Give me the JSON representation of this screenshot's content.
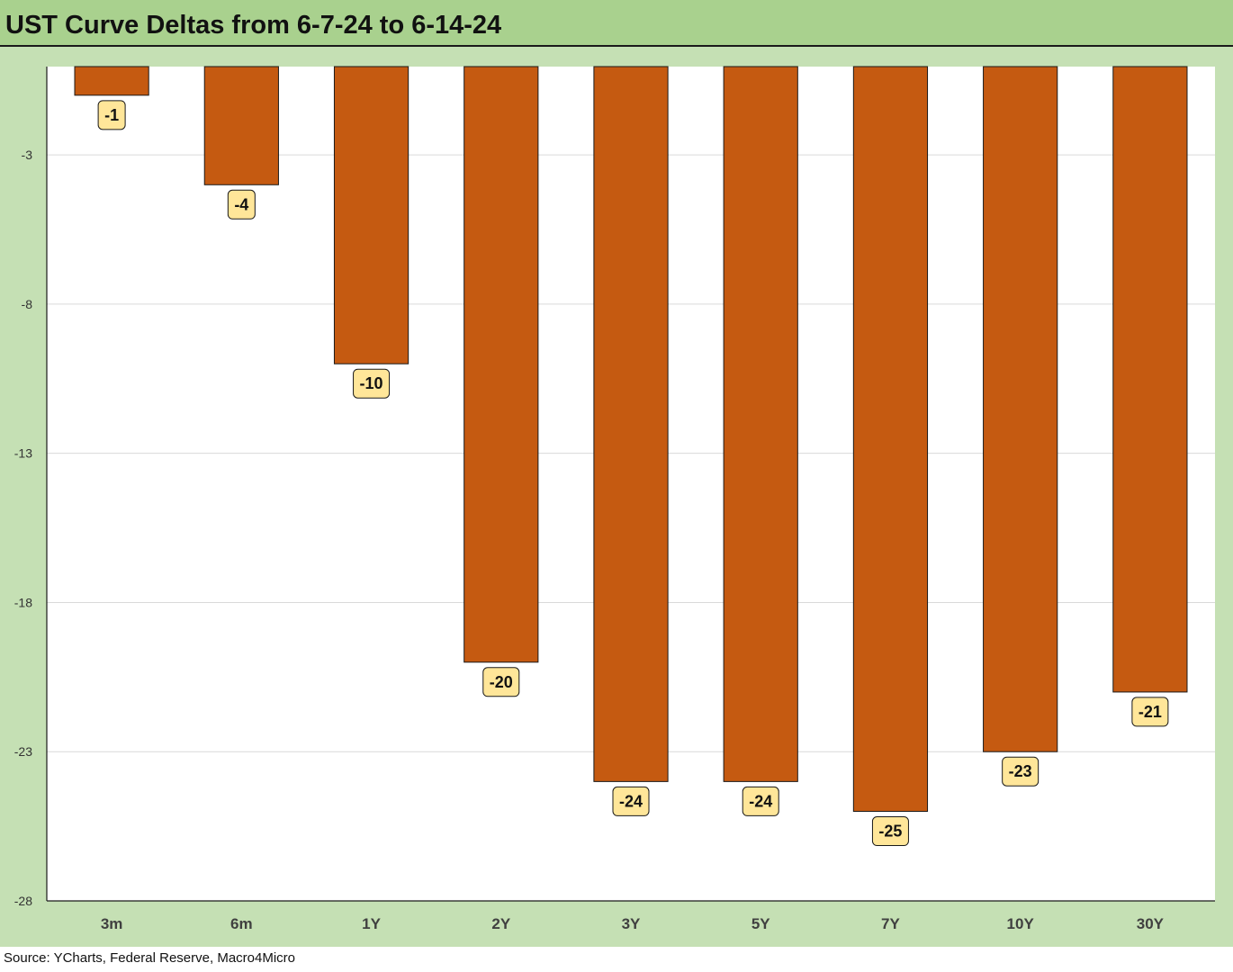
{
  "title": "UST Curve Deltas from 6-7-24 to 6-14-24",
  "source": "Source: YCharts, Federal Reserve, Macro4Micro",
  "colors": {
    "title_bg": "#a9d18e",
    "chart_bg": "#c5e0b4",
    "plot_bg": "#ffffff",
    "bar": "#c55a11",
    "label_bg": "#ffe699",
    "grid": "#d9d9d9"
  },
  "chart_data": {
    "type": "bar",
    "title": "UST Curve Deltas from 6-7-24 to 6-14-24",
    "xlabel": "",
    "ylabel": "",
    "categories": [
      "3m",
      "6m",
      "1Y",
      "2Y",
      "3Y",
      "5Y",
      "7Y",
      "10Y",
      "30Y"
    ],
    "values": [
      -1,
      -4,
      -10,
      -20,
      -24,
      -24,
      -25,
      -23,
      -21
    ],
    "data_labels": [
      "-1",
      "-4",
      "-10",
      "-20",
      "-24",
      "-24",
      "-25",
      "-23",
      "-21"
    ],
    "ylim": [
      -28,
      2
    ],
    "yticks": [
      -3,
      -8,
      -13,
      -18,
      -23,
      -28
    ],
    "ytick_labels": [
      "-3",
      "-8",
      "-13",
      "-18",
      "-23",
      "-28"
    ],
    "grid": true,
    "legend": "none"
  }
}
